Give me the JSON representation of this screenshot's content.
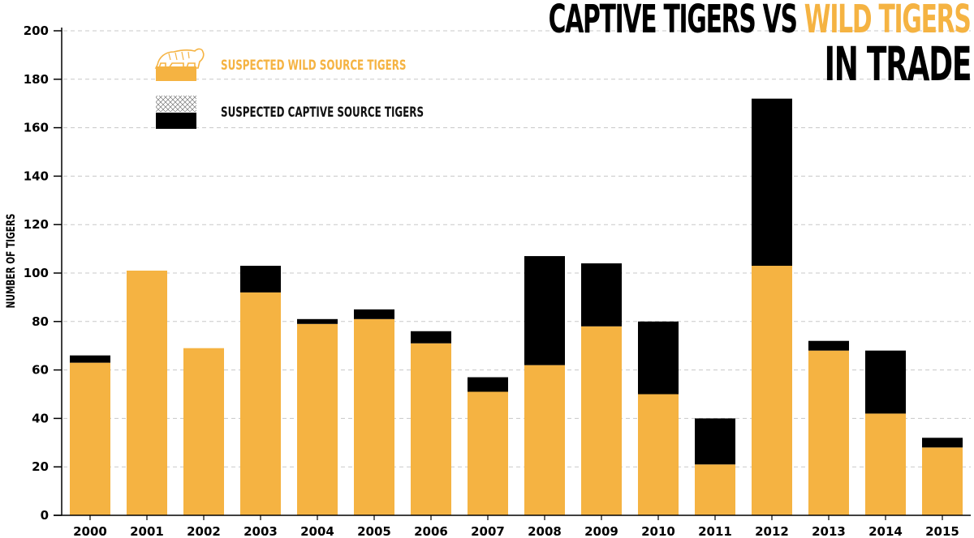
{
  "title": {
    "part1": "CAPTIVE TIGERS VS ",
    "part2": "WILD TIGERS",
    "line2": "IN TRADE"
  },
  "colors": {
    "wild": "#f5b342",
    "captive": "#000000",
    "grid": "#c8c8c8",
    "axis": "#000000"
  },
  "legend": {
    "wild_label": "SUSPECTED WILD SOURCE TIGERS",
    "captive_label": "SUSPECTED CAPTIVE SOURCE TIGERS",
    "wild_icon": "tiger-icon",
    "captive_icon": "cage-mesh-icon",
    "placement": "top-left"
  },
  "chart_data": {
    "type": "bar",
    "stacked": true,
    "ylabel": "NUMBER OF TIGERS",
    "xlabel": "",
    "ylim": [
      0,
      200
    ],
    "yticks": [
      0,
      20,
      40,
      60,
      80,
      100,
      120,
      140,
      160,
      180,
      200
    ],
    "grid": true,
    "categories": [
      "2000",
      "2001",
      "2002",
      "2003",
      "2004",
      "2005",
      "2006",
      "2007",
      "2008",
      "2009",
      "2010",
      "2011",
      "2012",
      "2013",
      "2014",
      "2015"
    ],
    "series": [
      {
        "name": "SUSPECTED WILD SOURCE TIGERS",
        "values": [
          63,
          101,
          69,
          92,
          79,
          81,
          71,
          51,
          62,
          78,
          50,
          21,
          103,
          68,
          42,
          28
        ]
      },
      {
        "name": "SUSPECTED CAPTIVE SOURCE TIGERS",
        "values": [
          3,
          0,
          0,
          11,
          2,
          4,
          5,
          6,
          45,
          26,
          30,
          19,
          69,
          4,
          26,
          4
        ]
      }
    ]
  }
}
